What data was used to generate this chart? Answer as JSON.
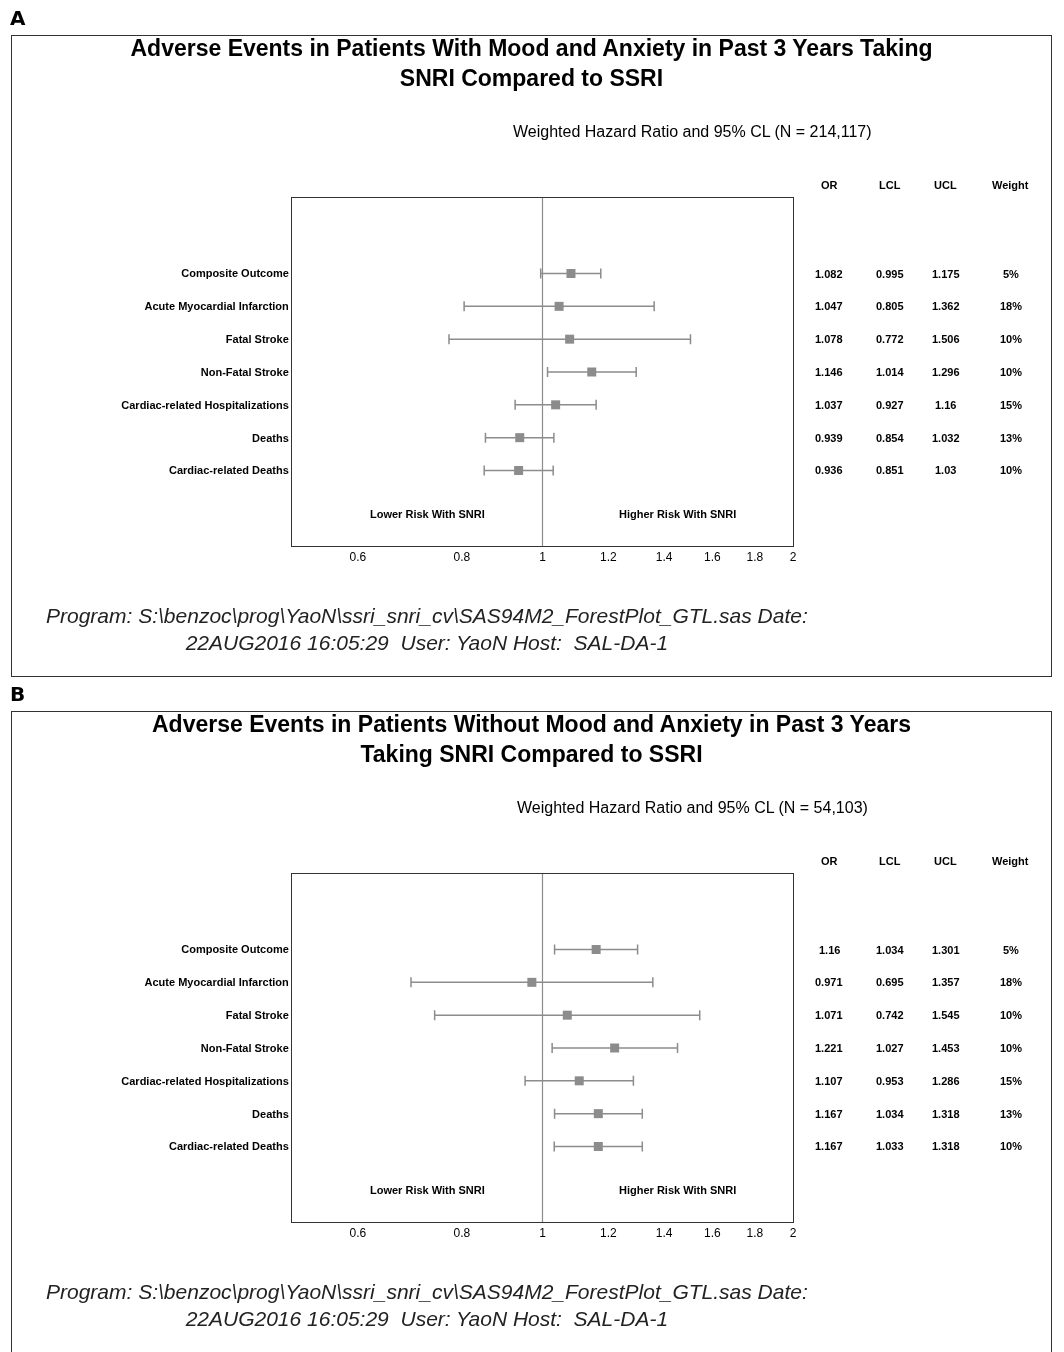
{
  "chart_data": [
    {
      "type": "scatter",
      "orientation": "horizontal",
      "title": "Adverse Events in Patients With Mood and Anxiety in Past 3 Years Taking SNRI Compared to SSRI",
      "subtitle": "Weighted Hazard Ratio and 95% CL (N = 214,117)",
      "categories": [
        "Composite Outcome",
        "Acute Myocardial Infarction",
        "Fatal Stroke",
        "Non-Fatal Stroke",
        "Cardiac-related Hospitalizations",
        "Deaths",
        "Cardiac-related Deaths"
      ],
      "series": [
        {
          "color": "#8c8c8c",
          "values": [
            1.082,
            1.047,
            1.078,
            1.146,
            1.037,
            0.939,
            0.936
          ],
          "errors": [
            [
              0.995,
              1.175
            ],
            [
              0.805,
              1.362
            ],
            [
              0.772,
              1.506
            ],
            [
              1.014,
              1.296
            ],
            [
              0.927,
              1.16
            ],
            [
              0.854,
              1.032
            ],
            [
              0.851,
              1.03
            ]
          ]
        }
      ],
      "marker": "square",
      "data_labels": true,
      "log": "x",
      "xlim": [
        0.5,
        2
      ],
      "xticks": [
        0.6,
        0.8,
        1,
        1.2,
        1.4,
        1.6,
        1.8,
        2
      ],
      "grid": false,
      "ref_lines": [
        {
          "axis": "x",
          "value": 1,
          "color": "#8c8c8c"
        }
      ],
      "annotations": [
        "A",
        "OR",
        "LCL",
        "UCL",
        "Weight",
        "0.995",
        "0.805",
        "0.772",
        "1.014",
        "0.927",
        "0.854",
        "0.851",
        "1.175",
        "1.362",
        "1.506",
        "1.296",
        "1.16",
        "1.032",
        "1.03",
        "5%",
        "18%",
        "10%",
        "10%",
        "15%",
        "13%",
        "10%",
        "Lower Risk With SNRI",
        "Higher Risk With SNRI",
        "Program: S:\\benzoc\\prog\\YaoN\\ssri_snri_cv\\SAS94M2_ForestPlot_GTL.sas Date: 22AUG2016 16:05:29  User: YaoN Host:  SAL-DA-1"
      ]
    },
    {
      "type": "scatter",
      "orientation": "horizontal",
      "title": "Adverse Events in Patients Without Mood and Anxiety in Past 3 Years Taking SNRI Compared to SSRI",
      "subtitle": "Weighted Hazard Ratio and 95% CL (N = 54,103)",
      "categories": [
        "Composite Outcome",
        "Acute Myocardial Infarction",
        "Fatal Stroke",
        "Non-Fatal Stroke",
        "Cardiac-related Hospitalizations",
        "Deaths",
        "Cardiac-related Deaths"
      ],
      "series": [
        {
          "color": "#8c8c8c",
          "values": [
            1.16,
            0.971,
            1.071,
            1.221,
            1.107,
            1.167,
            1.167
          ],
          "errors": [
            [
              1.034,
              1.301
            ],
            [
              0.695,
              1.357
            ],
            [
              0.742,
              1.545
            ],
            [
              1.027,
              1.453
            ],
            [
              0.953,
              1.286
            ],
            [
              1.034,
              1.318
            ],
            [
              1.033,
              1.318
            ]
          ]
        }
      ],
      "marker": "square",
      "data_labels": true,
      "log": "x",
      "xlim": [
        0.5,
        2
      ],
      "xticks": [
        0.6,
        0.8,
        1,
        1.2,
        1.4,
        1.6,
        1.8,
        2
      ],
      "grid": false,
      "ref_lines": [
        {
          "axis": "x",
          "value": 1,
          "color": "#8c8c8c"
        }
      ],
      "annotations": [
        "B",
        "OR",
        "LCL",
        "UCL",
        "Weight",
        "1.034",
        "0.695",
        "0.742",
        "1.027",
        "0.953",
        "1.034",
        "1.033",
        "1.301",
        "1.357",
        "1.545",
        "1.453",
        "1.286",
        "1.318",
        "1.318",
        "5%",
        "18%",
        "10%",
        "10%",
        "15%",
        "13%",
        "10%",
        "Lower Risk With SNRI",
        "Higher Risk With SNRI",
        "Program: S:\\benzoc\\prog\\YaoN\\ssri_snri_cv\\SAS94M2_ForestPlot_GTL.sas Date: 22AUG2016 16:05:29  User: YaoN Host:  SAL-DA-1"
      ]
    }
  ]
}
